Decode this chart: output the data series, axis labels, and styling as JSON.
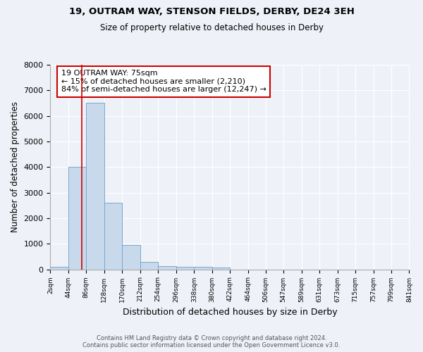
{
  "title1": "19, OUTRAM WAY, STENSON FIELDS, DERBY, DE24 3EH",
  "title2": "Size of property relative to detached houses in Derby",
  "xlabel": "Distribution of detached houses by size in Derby",
  "ylabel": "Number of detached properties",
  "bin_edges": [
    2,
    44,
    86,
    128,
    170,
    212,
    254,
    296,
    338,
    380,
    422,
    464,
    506,
    547,
    589,
    631,
    673,
    715,
    757,
    799,
    841
  ],
  "bar_heights": [
    100,
    4000,
    6500,
    2600,
    950,
    300,
    120,
    90,
    90,
    70,
    0,
    0,
    0,
    0,
    0,
    0,
    0,
    0,
    0,
    0
  ],
  "bar_color": "#c9d9ec",
  "bar_edge_color": "#7aa8cc",
  "property_size": 75,
  "annotation_line1": "19 OUTRAM WAY: 75sqm",
  "annotation_line2": "← 15% of detached houses are smaller (2,210)",
  "annotation_line3": "84% of semi-detached houses are larger (12,247) →",
  "annotation_box_color": "#ffffff",
  "annotation_box_edge_color": "#cc0000",
  "red_line_color": "#cc0000",
  "ylim": [
    0,
    8000
  ],
  "xlim": [
    2,
    841
  ],
  "footer1": "Contains HM Land Registry data © Crown copyright and database right 2024.",
  "footer2": "Contains public sector information licensed under the Open Government Licence v3.0.",
  "bg_color": "#eef2f8",
  "grid_color": "#ffffff",
  "tick_labels": [
    "2sqm",
    "44sqm",
    "86sqm",
    "128sqm",
    "170sqm",
    "212sqm",
    "254sqm",
    "296sqm",
    "338sqm",
    "380sqm",
    "422sqm",
    "464sqm",
    "506sqm",
    "547sqm",
    "589sqm",
    "631sqm",
    "673sqm",
    "715sqm",
    "757sqm",
    "799sqm",
    "841sqm"
  ]
}
